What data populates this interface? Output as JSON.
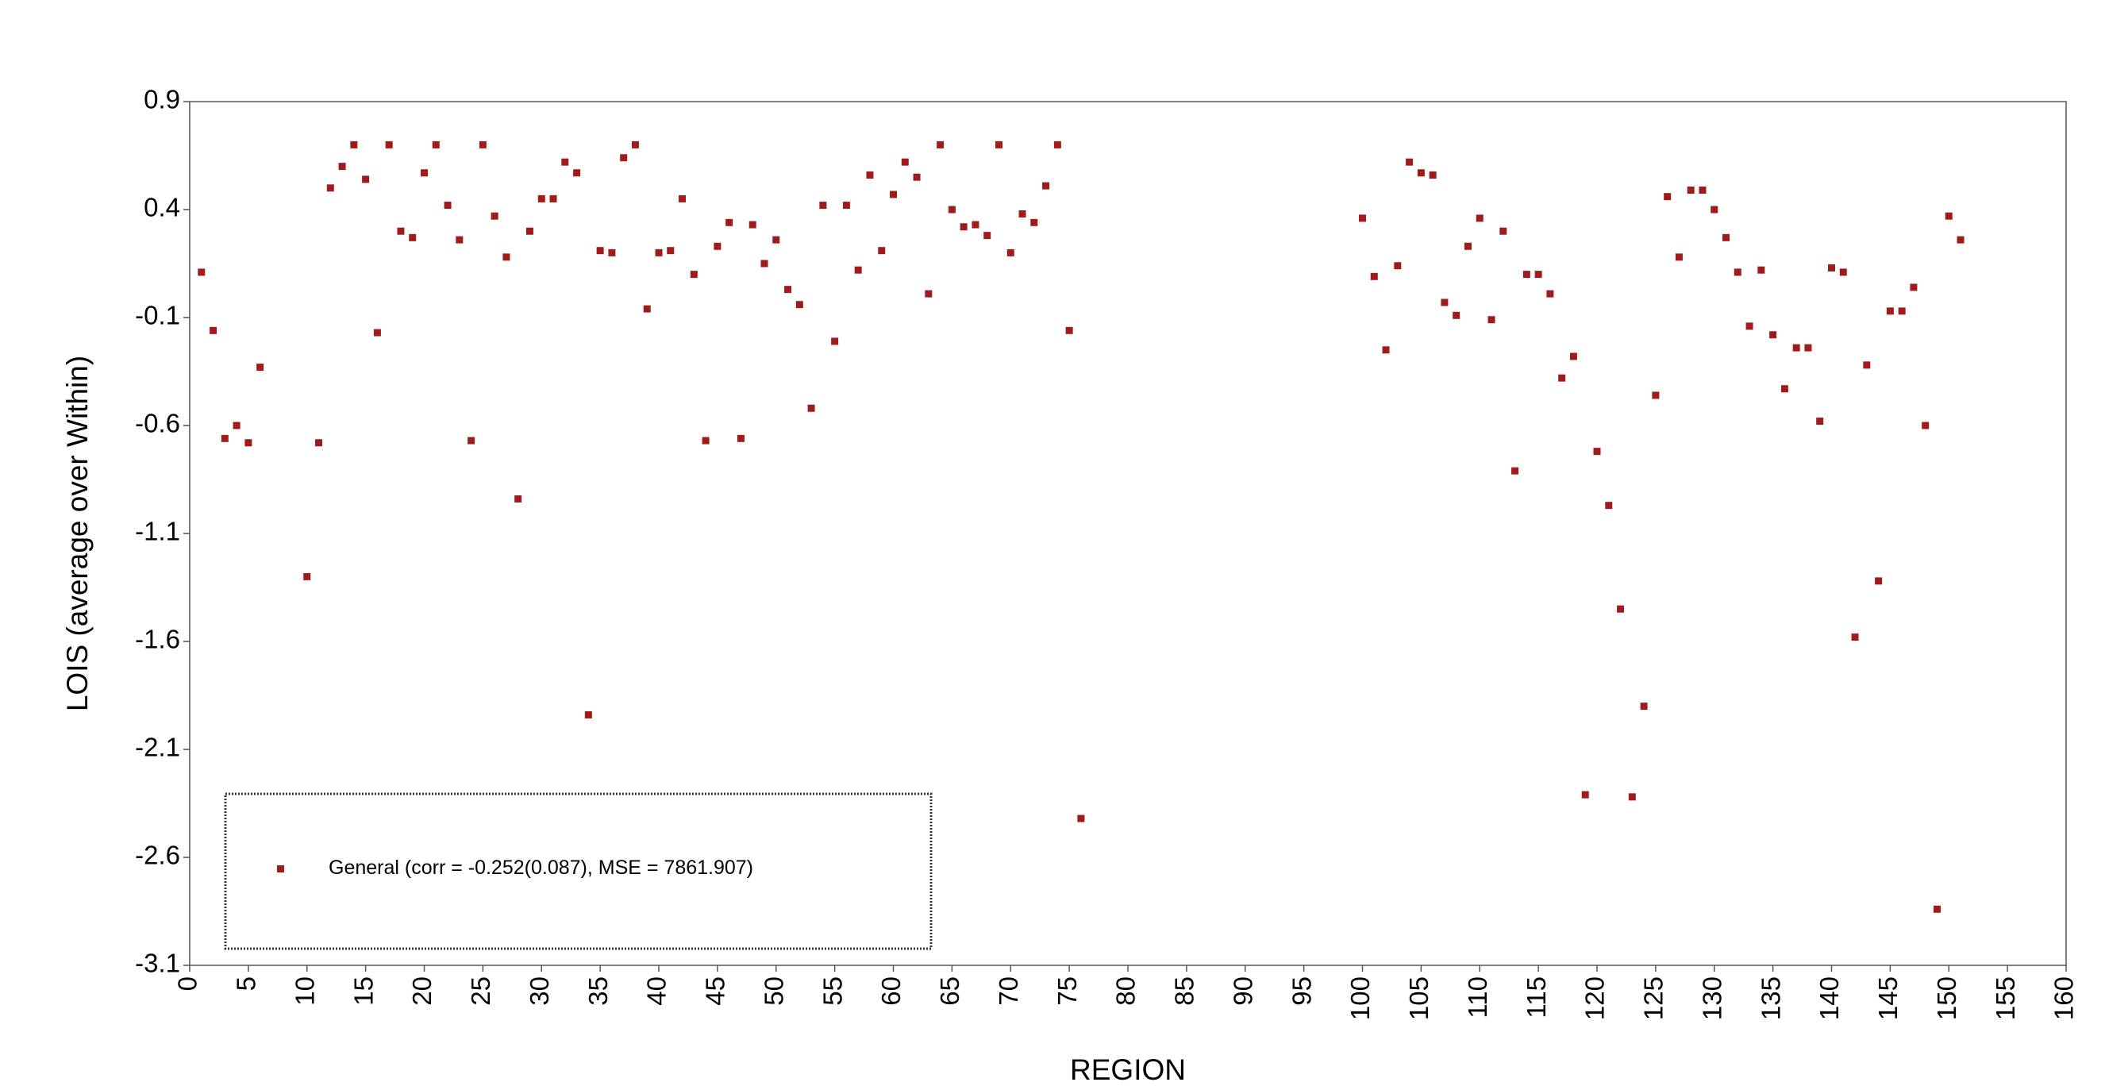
{
  "chart_data": {
    "type": "scatter",
    "x_label": "REGION",
    "y_label": "LOIS (average over Within)",
    "xlim": [
      0,
      160
    ],
    "xticks": [
      0,
      5,
      10,
      15,
      20,
      25,
      30,
      35,
      40,
      45,
      50,
      55,
      60,
      65,
      70,
      75,
      80,
      85,
      90,
      95,
      100,
      105,
      110,
      115,
      120,
      125,
      130,
      135,
      140,
      145,
      150,
      155,
      160
    ],
    "ylim": [
      -3.1,
      0.9
    ],
    "yticks": [
      0.9,
      0.4,
      -0.1,
      -0.6,
      -1.1,
      -1.6,
      -2.1,
      -2.6,
      -3.1
    ],
    "grid": false,
    "legend": "bottom-left",
    "series": [
      {
        "name": "General (corr = -0.252(0.087), MSE = 7861.907)",
        "color": "#a01c1c",
        "x": [
          1,
          2,
          3,
          4,
          5,
          6,
          10,
          11,
          12,
          13,
          14,
          15,
          16,
          17,
          18,
          19,
          20,
          21,
          22,
          23,
          24,
          25,
          26,
          27,
          28,
          29,
          30,
          31,
          32,
          33,
          34,
          35,
          36,
          37,
          38,
          39,
          40,
          41,
          42,
          43,
          44,
          45,
          46,
          47,
          48,
          49,
          50,
          51,
          52,
          53,
          54,
          55,
          56,
          57,
          58,
          59,
          60,
          61,
          62,
          63,
          64,
          65,
          66,
          67,
          68,
          69,
          70,
          71,
          72,
          73,
          74,
          75,
          76,
          100,
          101,
          102,
          103,
          104,
          105,
          106,
          107,
          108,
          109,
          110,
          111,
          112,
          113,
          114,
          115,
          116,
          117,
          118,
          119,
          120,
          121,
          122,
          123,
          124,
          125,
          126,
          127,
          128,
          129,
          130,
          131,
          132,
          133,
          134,
          135,
          136,
          137,
          138,
          139,
          140,
          141,
          142,
          143,
          144,
          145,
          146,
          147,
          148,
          149,
          150,
          151
        ],
        "values": [
          0.11,
          -0.16,
          -0.66,
          -0.6,
          -0.68,
          -0.33,
          -1.3,
          -0.68,
          0.5,
          0.6,
          0.7,
          0.54,
          -0.17,
          0.7,
          0.3,
          0.27,
          0.57,
          0.7,
          0.42,
          0.26,
          -0.67,
          0.7,
          0.37,
          0.18,
          -0.94,
          0.3,
          0.45,
          0.45,
          0.62,
          0.57,
          -1.94,
          0.21,
          0.2,
          0.64,
          0.7,
          -0.06,
          0.2,
          0.21,
          0.45,
          0.1,
          -0.67,
          0.23,
          0.34,
          -0.66,
          0.33,
          0.15,
          0.26,
          0.03,
          -0.04,
          -0.52,
          0.42,
          -0.21,
          0.42,
          0.12,
          0.56,
          0.21,
          0.47,
          0.62,
          0.55,
          0.01,
          0.7,
          0.4,
          0.32,
          0.33,
          0.28,
          0.7,
          0.2,
          0.38,
          0.34,
          0.51,
          0.7,
          -0.16,
          -2.42,
          0.36,
          0.09,
          -0.25,
          0.14,
          0.62,
          0.57,
          0.56,
          -0.03,
          -0.09,
          0.23,
          0.36,
          -0.11,
          0.3,
          -0.81,
          0.1,
          0.1,
          0.01,
          -0.38,
          -0.28,
          -2.31,
          -0.72,
          -0.97,
          -1.45,
          -2.32,
          -1.9,
          -0.46,
          0.46,
          0.18,
          0.49,
          0.49,
          0.4,
          0.27,
          0.11,
          -0.14,
          0.12,
          -0.18,
          -0.43,
          -0.24,
          -0.24,
          -0.58,
          0.13,
          0.11,
          -1.58,
          -0.32,
          -1.32,
          -0.07,
          -0.07,
          0.04,
          -0.6,
          -2.84,
          0.37,
          0.26
        ]
      }
    ]
  }
}
